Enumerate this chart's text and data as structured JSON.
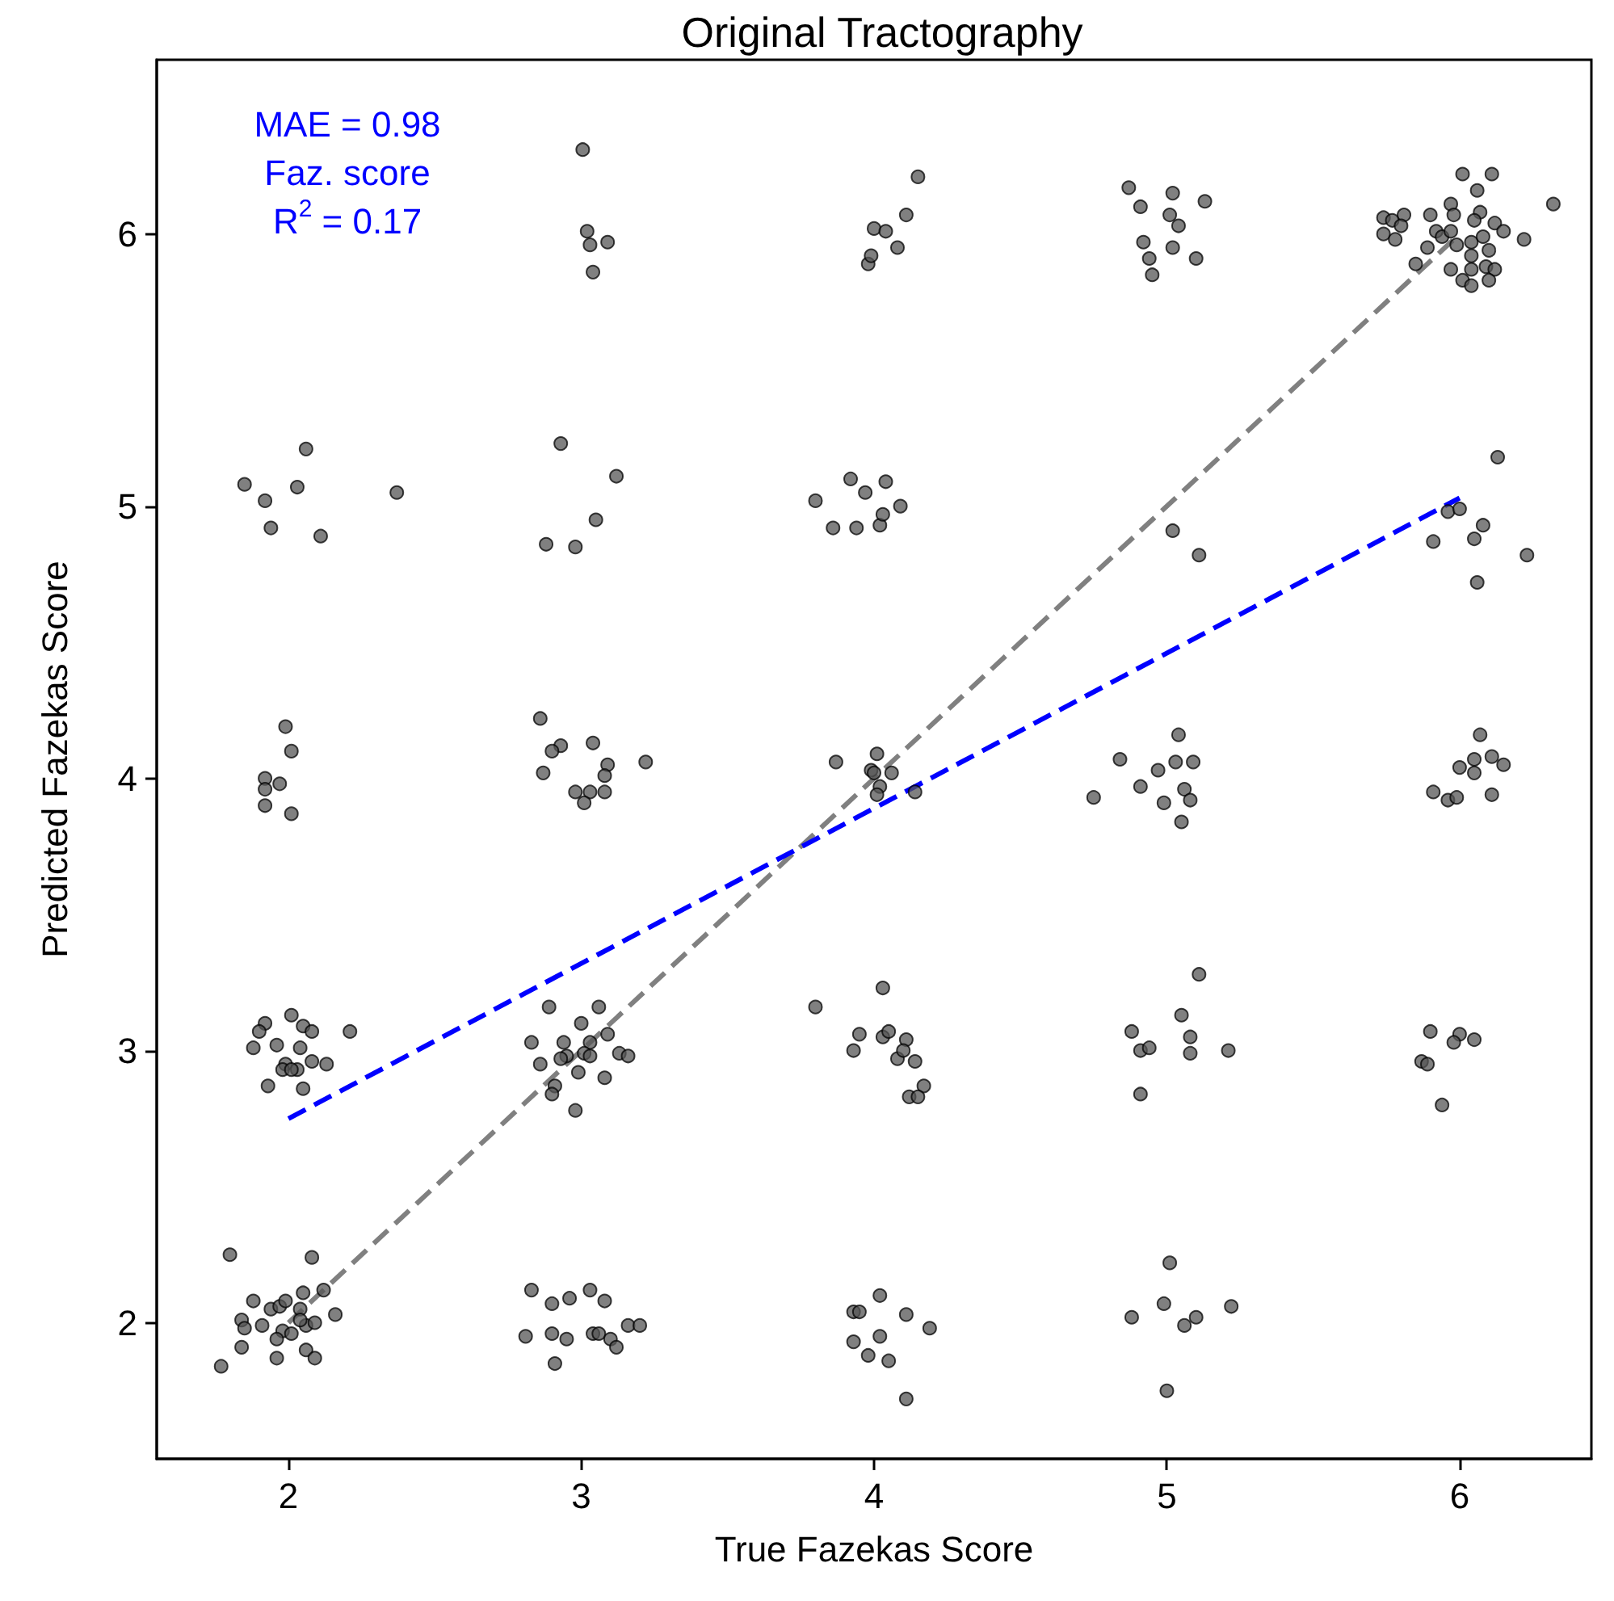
{
  "chart_data": {
    "type": "scatter",
    "title": "Original Tractography",
    "xlabel": "True Fazekas Score",
    "ylabel": "Predicted Fazekas Score",
    "annotations": [
      "MAE = 0.98",
      "Faz. score",
      "R$^{2}$ = 0.17"
    ],
    "xlim": [
      1.55,
      6.45
    ],
    "ylim": [
      1.5,
      6.64
    ],
    "xticks": [
      2,
      3,
      4,
      5,
      6
    ],
    "yticks": [
      2,
      3,
      4,
      5,
      6
    ],
    "grid": false,
    "series": [
      {
        "color": "#555555",
        "marker": "circle",
        "x": [
          3.005,
          3.02,
          3.03,
          3.09,
          3.04,
          4.0,
          3.98,
          3.99,
          4.04,
          4.11,
          4.15,
          4.08,
          4.87,
          5.02,
          5.13,
          4.91,
          5.01,
          5.04,
          4.92,
          5.02,
          4.94,
          5.1,
          4.95,
          6.01,
          6.11,
          6.06,
          6.32,
          5.97,
          5.74,
          5.77,
          5.81,
          5.8,
          5.9,
          5.98,
          6.07,
          6.05,
          6.12,
          6.15,
          6.22,
          5.74,
          5.78,
          5.92,
          5.94,
          5.97,
          5.99,
          5.89,
          6.04,
          6.08,
          6.04,
          6.1,
          5.85,
          5.97,
          6.04,
          6.09,
          6.12,
          6.01,
          6.04,
          6.1,
          1.85,
          1.92,
          1.94,
          2.03,
          2.06,
          2.11,
          2.37,
          2.93,
          3.12,
          3.05,
          2.88,
          2.98,
          3.8,
          3.92,
          3.97,
          3.86,
          3.94,
          4.02,
          4.04,
          4.09,
          4.03,
          5.02,
          5.11,
          6.13,
          5.96,
          6.0,
          6.08,
          5.91,
          6.05,
          6.23,
          6.06,
          1.99,
          2.01,
          1.92,
          1.97,
          1.92,
          1.92,
          2.01,
          2.86,
          2.93,
          2.9,
          3.04,
          3.09,
          3.08,
          2.87,
          3.22,
          2.98,
          3.03,
          3.08,
          3.01,
          3.87,
          4.01,
          3.99,
          4.06,
          4.02,
          4.01,
          4.14,
          4.0,
          4.84,
          5.04,
          5.03,
          5.09,
          4.97,
          4.91,
          5.06,
          4.75,
          4.99,
          5.08,
          5.05,
          6.07,
          6.05,
          6.11,
          6.15,
          6.0,
          6.05,
          5.91,
          5.96,
          5.99,
          6.11,
          1.92,
          1.9,
          2.01,
          2.05,
          2.08,
          2.21,
          1.88,
          1.96,
          2.04,
          1.99,
          2.03,
          1.98,
          2.08,
          2.13,
          1.93,
          2.05,
          2.01,
          2.89,
          3.06,
          3.0,
          2.83,
          2.94,
          3.03,
          3.09,
          3.13,
          3.16,
          2.86,
          2.95,
          3.01,
          3.03,
          2.99,
          3.08,
          2.91,
          2.9,
          2.98,
          2.93,
          3.8,
          4.03,
          3.95,
          3.93,
          4.03,
          4.05,
          4.11,
          4.08,
          4.1,
          4.14,
          4.17,
          4.12,
          4.15,
          5.11,
          5.05,
          4.88,
          4.91,
          4.94,
          5.08,
          5.08,
          5.21,
          4.91,
          5.9,
          6.0,
          5.98,
          6.05,
          5.87,
          5.89,
          5.94,
          1.8,
          2.08,
          1.88,
          2.05,
          2.12,
          1.94,
          1.97,
          1.99,
          2.04,
          1.84,
          1.91,
          1.85,
          1.98,
          2.01,
          2.06,
          2.09,
          2.16,
          1.96,
          1.84,
          2.06,
          2.09,
          1.96,
          1.77,
          2.04,
          2.83,
          2.96,
          3.03,
          3.08,
          2.9,
          2.81,
          2.9,
          2.95,
          3.04,
          3.06,
          3.1,
          3.12,
          3.16,
          3.2,
          2.91,
          4.02,
          4.11,
          4.19,
          4.02,
          4.05,
          4.11,
          3.98,
          3.93,
          3.95,
          3.93,
          5.01,
          4.99,
          4.88,
          5.06,
          5.1,
          5.22,
          5.0
        ],
        "values": [
          6.31,
          6.01,
          5.96,
          5.97,
          5.86,
          6.02,
          5.89,
          5.92,
          6.01,
          6.07,
          6.21,
          5.95,
          6.17,
          6.15,
          6.12,
          6.1,
          6.07,
          6.03,
          5.97,
          5.95,
          5.91,
          5.91,
          5.85,
          6.22,
          6.22,
          6.16,
          6.11,
          6.11,
          6.06,
          6.05,
          6.07,
          6.03,
          6.07,
          6.07,
          6.08,
          6.05,
          6.04,
          6.01,
          5.98,
          6.0,
          5.98,
          6.01,
          5.99,
          6.01,
          5.96,
          5.95,
          5.97,
          5.99,
          5.92,
          5.94,
          5.89,
          5.87,
          5.87,
          5.88,
          5.87,
          5.83,
          5.81,
          5.83,
          5.08,
          5.02,
          4.92,
          5.07,
          5.21,
          4.89,
          5.05,
          5.23,
          5.11,
          4.95,
          4.86,
          4.85,
          5.02,
          5.1,
          5.05,
          4.92,
          4.92,
          4.93,
          5.09,
          5.0,
          4.97,
          4.91,
          4.82,
          5.18,
          4.98,
          4.99,
          4.93,
          4.87,
          4.88,
          4.82,
          4.72,
          4.19,
          4.1,
          4.0,
          3.98,
          3.96,
          3.9,
          3.87,
          4.22,
          4.12,
          4.1,
          4.13,
          4.05,
          4.01,
          4.02,
          4.06,
          3.95,
          3.95,
          3.95,
          3.91,
          4.06,
          4.09,
          4.03,
          4.02,
          3.97,
          3.94,
          3.95,
          4.02,
          4.07,
          4.16,
          4.06,
          4.06,
          4.03,
          3.97,
          3.96,
          3.93,
          3.91,
          3.92,
          3.84,
          4.16,
          4.07,
          4.08,
          4.05,
          4.04,
          4.02,
          3.95,
          3.92,
          3.93,
          3.94,
          3.1,
          3.07,
          3.13,
          3.09,
          3.07,
          3.07,
          3.01,
          3.02,
          3.01,
          2.95,
          2.93,
          2.93,
          2.96,
          2.95,
          2.87,
          2.86,
          2.93,
          3.16,
          3.16,
          3.1,
          3.03,
          3.03,
          3.03,
          3.06,
          2.99,
          2.98,
          2.95,
          2.98,
          2.99,
          2.98,
          2.92,
          2.9,
          2.87,
          2.84,
          2.78,
          2.97,
          3.16,
          3.23,
          3.06,
          3.0,
          3.05,
          3.07,
          3.04,
          2.97,
          3.0,
          2.96,
          2.87,
          2.83,
          2.83,
          3.28,
          3.13,
          3.07,
          3.0,
          3.01,
          3.05,
          2.99,
          3.0,
          2.84,
          3.07,
          3.06,
          3.03,
          3.04,
          2.96,
          2.95,
          2.8,
          2.25,
          2.24,
          2.08,
          2.11,
          2.12,
          2.05,
          2.06,
          2.08,
          2.05,
          2.01,
          1.99,
          1.98,
          1.97,
          1.96,
          1.99,
          2.0,
          2.03,
          1.94,
          1.91,
          1.9,
          1.87,
          1.87,
          1.84,
          2.01,
          2.12,
          2.09,
          2.12,
          2.08,
          2.07,
          1.95,
          1.96,
          1.94,
          1.96,
          1.96,
          1.94,
          1.91,
          1.99,
          1.99,
          1.85,
          2.1,
          2.03,
          1.98,
          1.95,
          1.86,
          1.72,
          1.88,
          2.04,
          2.04,
          1.93,
          2.22,
          2.07,
          2.02,
          1.99,
          2.02,
          2.06,
          1.75
        ]
      },
      {
        "type": "line",
        "color": "#808080",
        "line_style": "dashed",
        "marker": "none",
        "x": [
          2,
          6
        ],
        "values": [
          2,
          6
        ]
      },
      {
        "type": "line",
        "color": "#0000ff",
        "line_style": "dashed",
        "marker": "none",
        "x": [
          2,
          6
        ],
        "values": [
          2.75,
          5.03
        ]
      }
    ]
  }
}
